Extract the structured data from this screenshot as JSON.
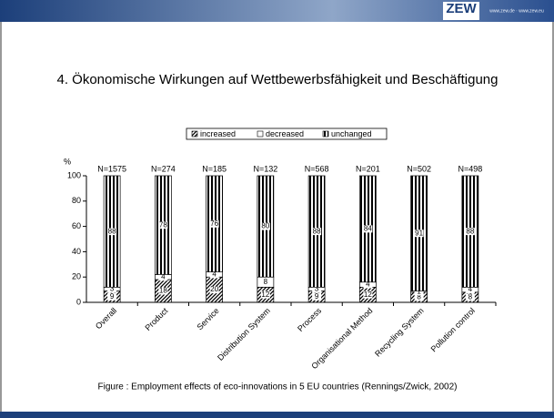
{
  "header": {
    "logo": "ZEW",
    "url": "www.zew.de · www.zew.eu"
  },
  "slide_title": "4. Ökonomische Wirkungen auf Wettbewerbsfähigkeit und Beschäftigung",
  "caption": "Figure : Employment effects of eco-innovations in 5 EU countries (Rennings/Zwick, 2002)",
  "chart_data": {
    "type": "stacked_bar",
    "y_label": "%",
    "categories": [
      "Overall",
      "Product",
      "Service",
      "Distribution System",
      "Process",
      "Organisational Method",
      "Recycling System",
      "Pollution control"
    ],
    "annotations": [
      "N=1575",
      "N=274",
      "N=185",
      "N=132",
      "N=568",
      "N=201",
      "N=502",
      "N=498"
    ],
    "series": [
      {
        "name": "increased",
        "color": "#000000",
        "pattern": "diagonal",
        "values": [
          9,
          18,
          20,
          12,
          9,
          12,
          8,
          8
        ]
      },
      {
        "name": "decreased",
        "color": "#ffffff",
        "pattern": "solid",
        "values": [
          3,
          4,
          4,
          8,
          3,
          4,
          1,
          4
        ]
      },
      {
        "name": "unchanged",
        "color": "#000000",
        "pattern": "vertical",
        "values": [
          88,
          78,
          76,
          80,
          88,
          84,
          91,
          88
        ]
      }
    ],
    "ylim": [
      0,
      100
    ],
    "yticks": [
      0,
      20,
      40,
      60,
      80,
      100
    ],
    "legend": "top"
  }
}
